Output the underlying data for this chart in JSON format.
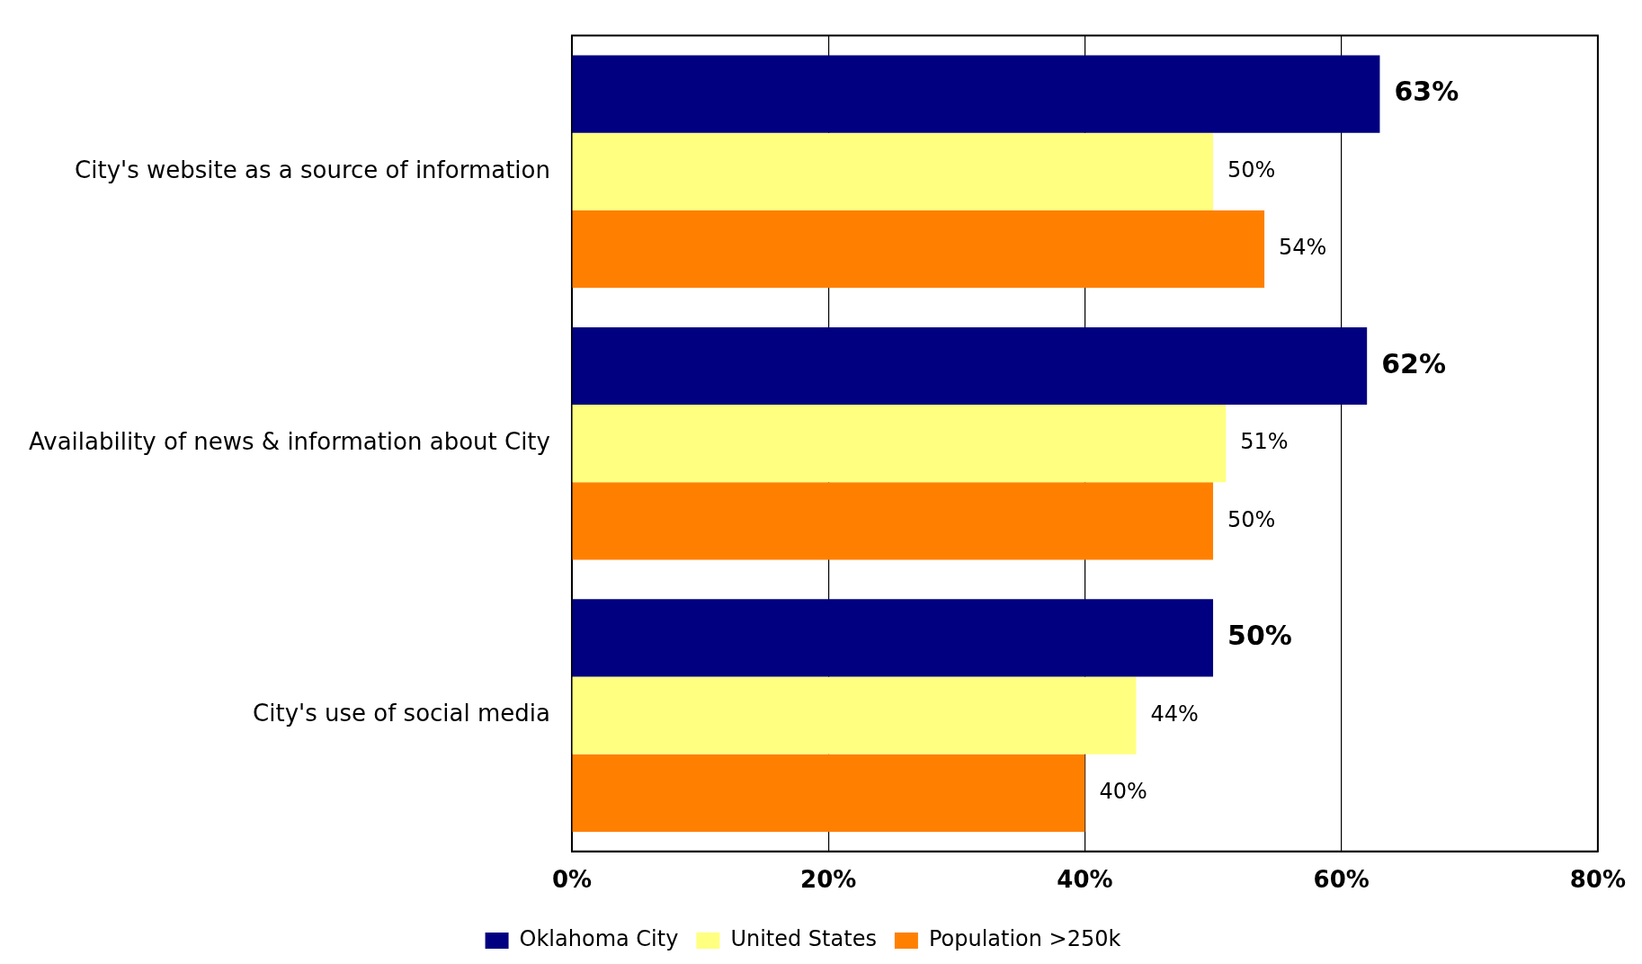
{
  "chart_data": {
    "type": "bar",
    "orientation": "horizontal",
    "categories": [
      "City's website as a source of information",
      "Availability of news & information about City",
      "City's use of social media"
    ],
    "series": [
      {
        "name": "Oklahoma City",
        "color": "#000080",
        "values": [
          63,
          62,
          50
        ],
        "value_labels": [
          "63%",
          "62%",
          "50%"
        ]
      },
      {
        "name": "United States",
        "color": "#ffff80",
        "values": [
          50,
          51,
          44
        ],
        "value_labels": [
          "50%",
          "51%",
          "44%"
        ]
      },
      {
        "name": "Population >250k",
        "color": "#ff8000",
        "values": [
          54,
          50,
          40
        ],
        "value_labels": [
          "54%",
          "50%",
          "40%"
        ]
      }
    ],
    "xlim": [
      0,
      80
    ],
    "xticks": [
      {
        "value": 0,
        "label": "0%"
      },
      {
        "value": 20,
        "label": "20%"
      },
      {
        "value": 40,
        "label": "40%"
      },
      {
        "value": 60,
        "label": "60%"
      },
      {
        "value": 80,
        "label": "80%"
      }
    ],
    "grid": "x",
    "legend": "bottom"
  }
}
